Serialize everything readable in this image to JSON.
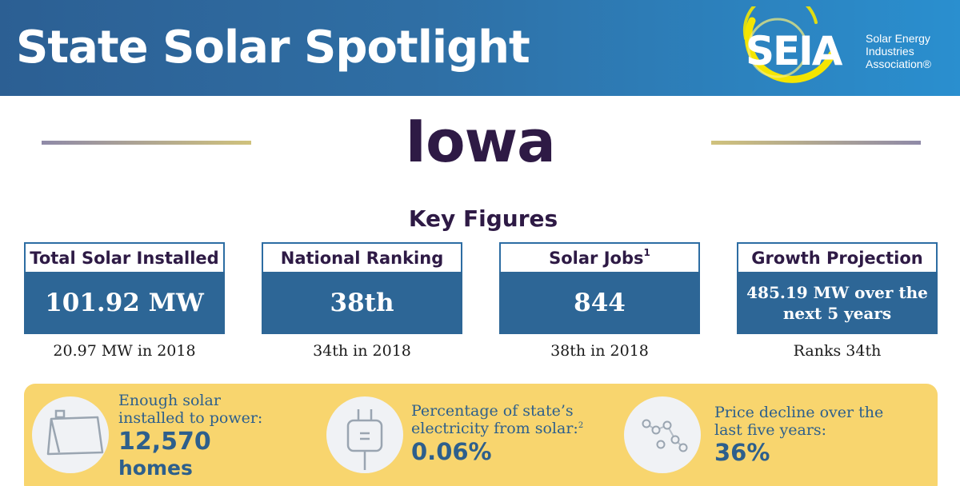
{
  "header": {
    "title": "State Solar Spotlight",
    "logo": {
      "mark": "SEIA",
      "text_lines": [
        "Solar Energy",
        "Industries",
        "Association®"
      ],
      "ring_color": "#f4e500"
    }
  },
  "state": {
    "name": "Iowa"
  },
  "key_figures": {
    "title": "Key Figures",
    "cards": [
      {
        "heading": "Total Solar Installed",
        "note": "",
        "value": "101.92 MW",
        "sub": "20.97 MW in 2018"
      },
      {
        "heading": "National Ranking",
        "note": "",
        "value": "38th",
        "sub": "34th in 2018"
      },
      {
        "heading": "Solar Jobs",
        "note": "1",
        "value": "844",
        "sub": "38th in 2018"
      },
      {
        "heading": "Growth Projection",
        "note": "",
        "value": "485.19 MW over the next 5 years",
        "sub": "Ranks 34th"
      }
    ]
  },
  "highlights": [
    {
      "icon": "home-solar-icon",
      "label": "Enough solar installed to power:",
      "note": "",
      "value": "12,570",
      "unit": "homes"
    },
    {
      "icon": "plug-icon",
      "label": "Percentage of state’s electricity from solar:",
      "note": "2",
      "value": "0.06%",
      "unit": ""
    },
    {
      "icon": "price-decline-icon",
      "label": "Price decline over the last five years:",
      "note": "",
      "value": "36%",
      "unit": ""
    }
  ],
  "colors": {
    "banner_start": "#2c5f93",
    "banner_end": "#2a8fcf",
    "title_purple": "#2e1a45",
    "card_blue": "#2d6696",
    "band_yellow": "#f8d56e",
    "stat_blue": "#2d5f8c"
  }
}
